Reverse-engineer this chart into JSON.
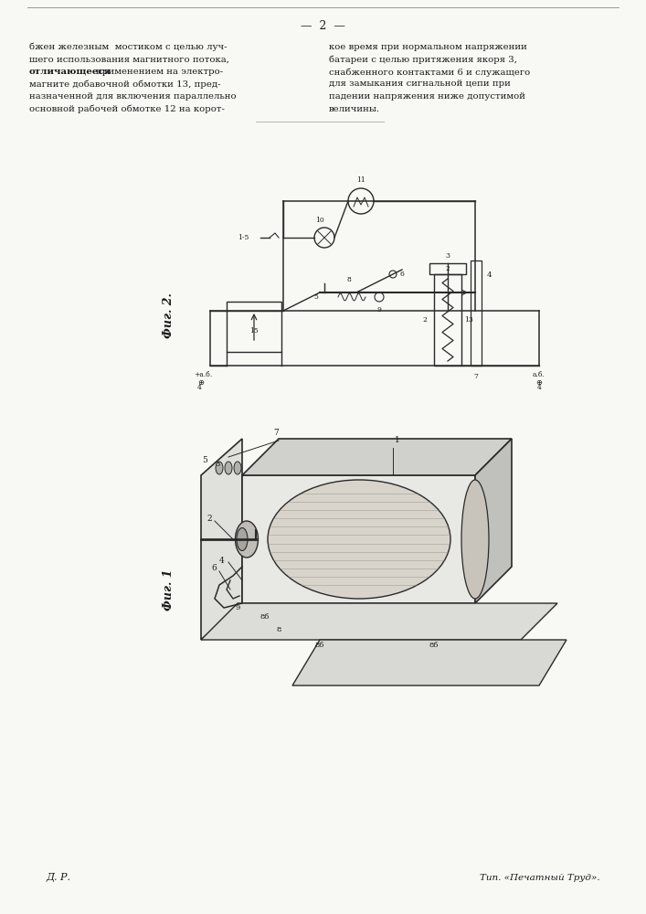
{
  "page_number": "2",
  "background_color": "#f0f0ec",
  "paper_color": "#f8f8f5",
  "text_color": "#1a1a1a",
  "diagram_color": "#2a2a2a",
  "line_color": "#555555",
  "left_col_lines": [
    "бжен железным  мостиком с целью луч-",
    "шего использования магнитного потока,",
    "применением на электро-",
    "магните добавочной обмотки 13, пред-",
    "назначенной для включения параллельно",
    "основной рабочей обмотке 12 на корот-"
  ],
  "bold_prefix": "отличающееся",
  "right_col_lines": [
    "кое время при нормальном напряжении",
    "батареи с целью притяжения якоря 3,",
    "снабженного контактами 6 и служащего",
    "для замыкания сигнальной цепи при",
    "падении напряжения ниже допустимой",
    "величины."
  ],
  "fig1_label": "Фиг. 1",
  "fig2_label": "Фиг. 2",
  "bottom_left": "Д. Р.",
  "bottom_right": "Тип. «Печатный Труд»."
}
